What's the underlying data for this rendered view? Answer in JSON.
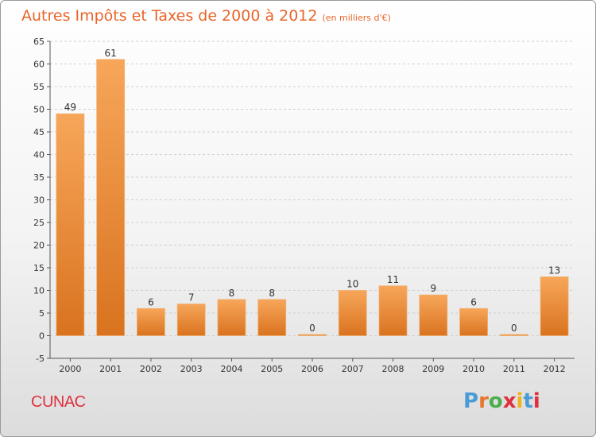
{
  "header": {
    "title": "Autres Impôts et Taxes de 2000 à 2012",
    "subtitle": "(en milliers d'€)"
  },
  "footer": {
    "commune": "CUNAC",
    "logo_text": "Proxiti",
    "logo_colors": [
      "#4a9bd6",
      "#e6772e",
      "#4cae4c",
      "#e0303d",
      "#f2b21a",
      "#4a9bd6",
      "#e0303d"
    ]
  },
  "colors": {
    "bar_light": "#f7a65a",
    "bar_dark": "#d9731f",
    "grid": "#d0d0d0",
    "title": "#e8652a"
  },
  "chart_data": {
    "type": "bar",
    "title": "Autres Impôts et Taxes de 2000 à 2012",
    "subtitle": "(en milliers d'€)",
    "categories": [
      "2000",
      "2001",
      "2002",
      "2003",
      "2004",
      "2005",
      "2006",
      "2007",
      "2008",
      "2009",
      "2010",
      "2011",
      "2012"
    ],
    "values": [
      49,
      61,
      6,
      7,
      8,
      8,
      0,
      10,
      11,
      9,
      6,
      0,
      13
    ],
    "ylim": [
      -5,
      65
    ],
    "yticks": [
      -5,
      0,
      5,
      10,
      15,
      20,
      25,
      30,
      35,
      40,
      45,
      50,
      55,
      60,
      65
    ],
    "grid": true,
    "legend": "none"
  }
}
